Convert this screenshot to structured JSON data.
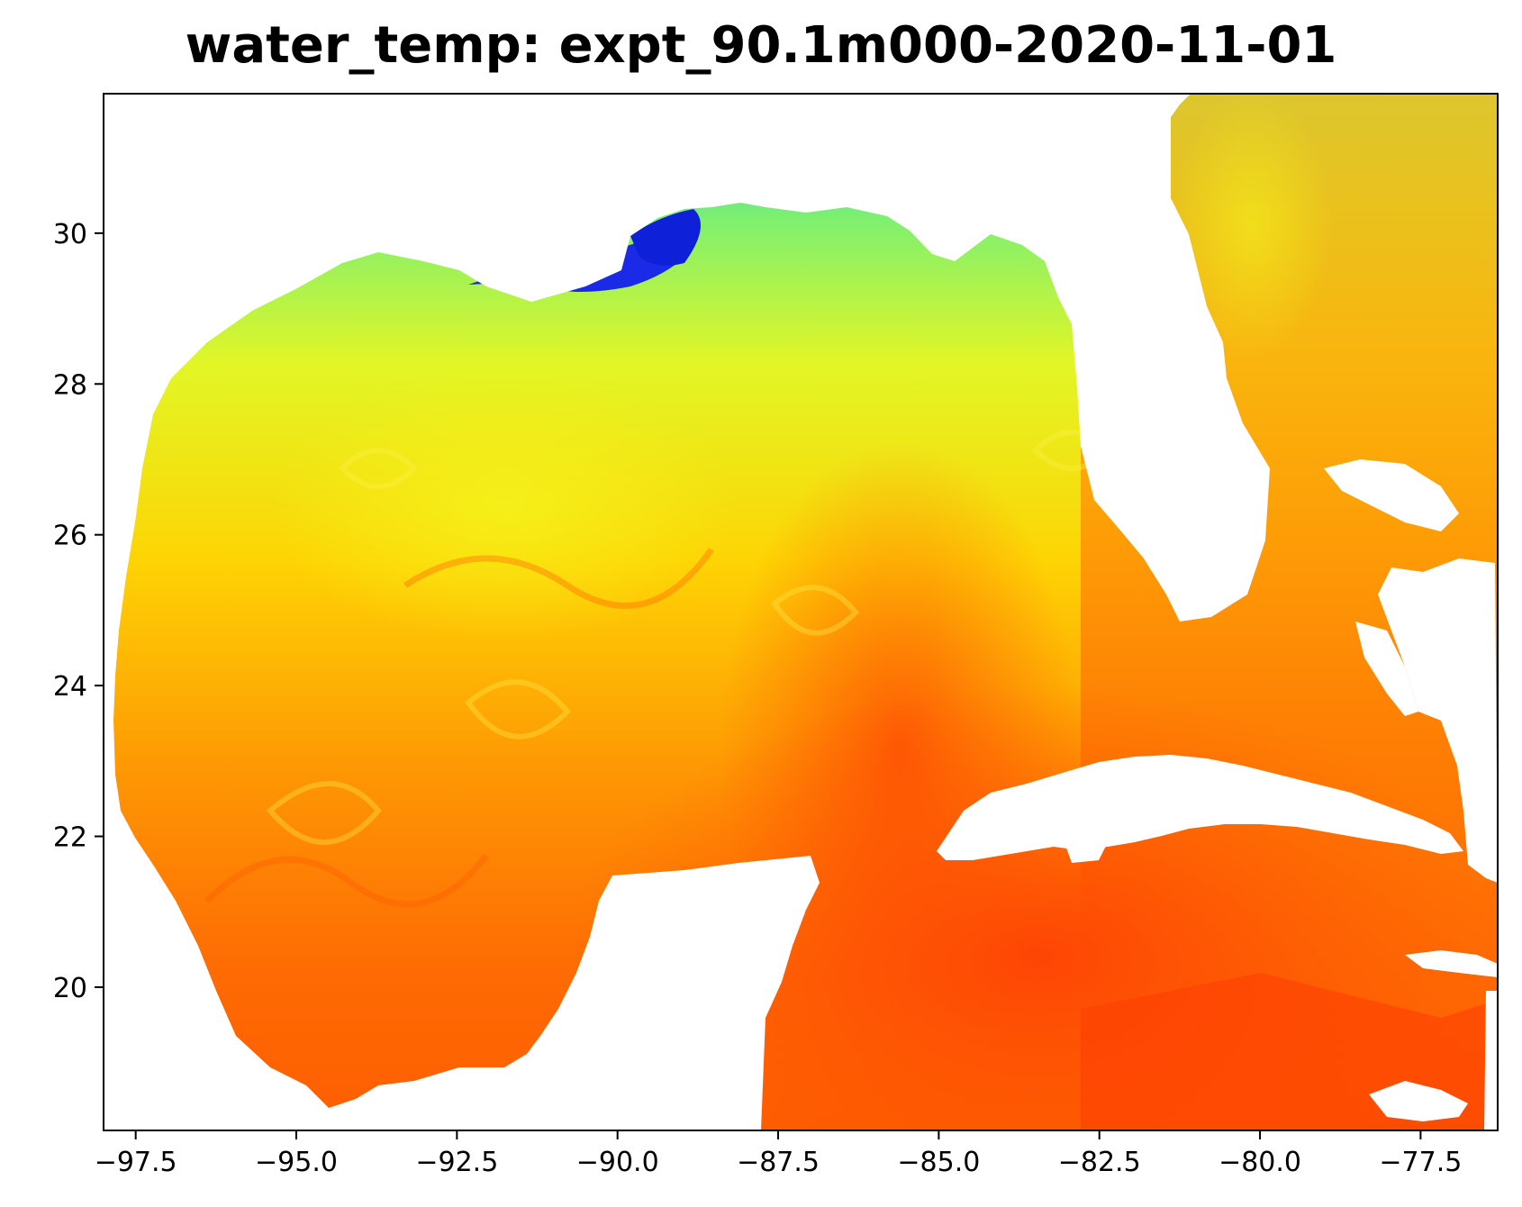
{
  "chart_data": {
    "type": "heatmap",
    "title": "water_temp: expt_90.1m000-2020-11-01",
    "xlabel": "",
    "ylabel": "",
    "xlim": [
      -98.0,
      -76.3
    ],
    "ylim": [
      18.1,
      31.85
    ],
    "x_ticks": [
      -97.5,
      -95.0,
      -92.5,
      -90.0,
      -87.5,
      -85.0,
      -82.5,
      -80.0,
      -77.5
    ],
    "x_tick_labels": [
      "−97.5",
      "−95.0",
      "−92.5",
      "−90.0",
      "−87.5",
      "−85.0",
      "−82.5",
      "−80.0",
      "−77.5"
    ],
    "y_ticks": [
      20,
      22,
      24,
      26,
      28,
      30
    ],
    "y_tick_labels": [
      "20",
      "22",
      "24",
      "26",
      "28",
      "30"
    ],
    "colormap": "jet",
    "land_color": "#ffffff",
    "grid": false,
    "colorbar": false
  }
}
